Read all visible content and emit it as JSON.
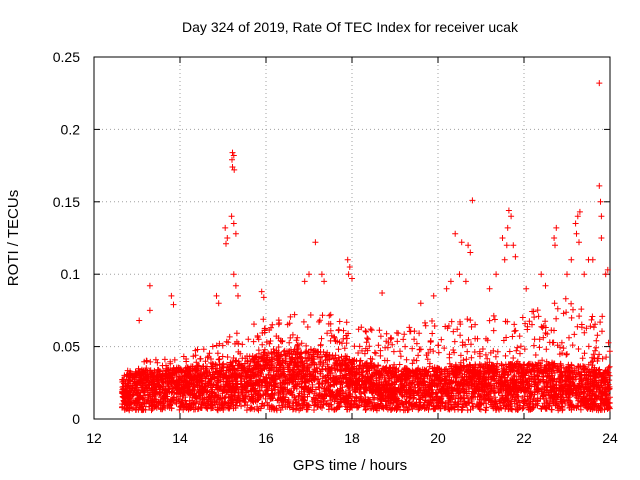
{
  "chart_data": {
    "type": "scatter",
    "title": "Day 324 of 2019, Rate Of TEC Index for receiver ucak",
    "xlabel": "GPS time / hours",
    "ylabel": "ROTI / TECUs",
    "xlim": [
      12,
      24
    ],
    "ylim": [
      0,
      0.25
    ],
    "x_ticks": [
      12,
      14,
      16,
      18,
      20,
      22,
      24
    ],
    "x_tick_labels": [
      "12",
      "14",
      "16",
      "18",
      "20",
      "22",
      "24"
    ],
    "y_ticks": [
      0,
      0.05,
      0.1,
      0.15,
      0.2,
      0.25
    ],
    "y_tick_labels": [
      "0",
      "0.05",
      "0.1",
      "0.15",
      "0.2",
      "0.25"
    ],
    "grid": true,
    "marker": "+",
    "series_color": "#ff0000",
    "data_start_hour": 12.65,
    "data_end_hour": 24.0,
    "baseline": {
      "hours": [
        12.65,
        13,
        14,
        15,
        16,
        17,
        18,
        19,
        20,
        21,
        22,
        23,
        24
      ],
      "typical_roti": [
        0.018,
        0.02,
        0.022,
        0.024,
        0.03,
        0.032,
        0.026,
        0.022,
        0.022,
        0.024,
        0.024,
        0.024,
        0.02
      ],
      "envelope_roti": [
        0.03,
        0.04,
        0.045,
        0.055,
        0.07,
        0.08,
        0.065,
        0.06,
        0.07,
        0.07,
        0.075,
        0.085,
        0.07
      ]
    },
    "highlighted_points": [
      {
        "x": 13.3,
        "y": 0.092
      },
      {
        "x": 13.3,
        "y": 0.075
      },
      {
        "x": 13.05,
        "y": 0.068
      },
      {
        "x": 13.8,
        "y": 0.085
      },
      {
        "x": 13.85,
        "y": 0.079
      },
      {
        "x": 14.85,
        "y": 0.085
      },
      {
        "x": 14.9,
        "y": 0.08
      },
      {
        "x": 15.05,
        "y": 0.132
      },
      {
        "x": 15.1,
        "y": 0.125
      },
      {
        "x": 15.07,
        "y": 0.121
      },
      {
        "x": 15.22,
        "y": 0.184
      },
      {
        "x": 15.25,
        "y": 0.182
      },
      {
        "x": 15.21,
        "y": 0.179
      },
      {
        "x": 15.22,
        "y": 0.174
      },
      {
        "x": 15.26,
        "y": 0.172
      },
      {
        "x": 15.2,
        "y": 0.14
      },
      {
        "x": 15.25,
        "y": 0.135
      },
      {
        "x": 15.3,
        "y": 0.128
      },
      {
        "x": 15.25,
        "y": 0.1
      },
      {
        "x": 15.3,
        "y": 0.092
      },
      {
        "x": 15.35,
        "y": 0.085
      },
      {
        "x": 15.9,
        "y": 0.088
      },
      {
        "x": 15.95,
        "y": 0.084
      },
      {
        "x": 16.9,
        "y": 0.095
      },
      {
        "x": 17.0,
        "y": 0.1
      },
      {
        "x": 17.15,
        "y": 0.122
      },
      {
        "x": 17.3,
        "y": 0.1
      },
      {
        "x": 17.35,
        "y": 0.095
      },
      {
        "x": 17.9,
        "y": 0.11
      },
      {
        "x": 17.95,
        "y": 0.105
      },
      {
        "x": 17.92,
        "y": 0.1
      },
      {
        "x": 18.0,
        "y": 0.097
      },
      {
        "x": 18.7,
        "y": 0.087
      },
      {
        "x": 19.6,
        "y": 0.08
      },
      {
        "x": 19.9,
        "y": 0.085
      },
      {
        "x": 20.2,
        "y": 0.09
      },
      {
        "x": 20.3,
        "y": 0.095
      },
      {
        "x": 20.4,
        "y": 0.128
      },
      {
        "x": 20.55,
        "y": 0.122
      },
      {
        "x": 20.7,
        "y": 0.12
      },
      {
        "x": 20.75,
        "y": 0.115
      },
      {
        "x": 20.8,
        "y": 0.151
      },
      {
        "x": 20.5,
        "y": 0.1
      },
      {
        "x": 20.65,
        "y": 0.095
      },
      {
        "x": 21.2,
        "y": 0.09
      },
      {
        "x": 21.35,
        "y": 0.1
      },
      {
        "x": 21.5,
        "y": 0.125
      },
      {
        "x": 21.6,
        "y": 0.12
      },
      {
        "x": 21.65,
        "y": 0.144
      },
      {
        "x": 21.7,
        "y": 0.14
      },
      {
        "x": 21.62,
        "y": 0.132
      },
      {
        "x": 21.55,
        "y": 0.11
      },
      {
        "x": 21.75,
        "y": 0.12
      },
      {
        "x": 21.8,
        "y": 0.112
      },
      {
        "x": 22.05,
        "y": 0.09
      },
      {
        "x": 22.4,
        "y": 0.1
      },
      {
        "x": 22.5,
        "y": 0.092
      },
      {
        "x": 22.7,
        "y": 0.125
      },
      {
        "x": 22.75,
        "y": 0.132
      },
      {
        "x": 22.72,
        "y": 0.12
      },
      {
        "x": 23.0,
        "y": 0.1
      },
      {
        "x": 23.1,
        "y": 0.11
      },
      {
        "x": 23.2,
        "y": 0.135
      },
      {
        "x": 23.25,
        "y": 0.14
      },
      {
        "x": 23.3,
        "y": 0.143
      },
      {
        "x": 23.22,
        "y": 0.128
      },
      {
        "x": 23.28,
        "y": 0.122
      },
      {
        "x": 23.4,
        "y": 0.1
      },
      {
        "x": 23.5,
        "y": 0.11
      },
      {
        "x": 23.75,
        "y": 0.232
      },
      {
        "x": 23.75,
        "y": 0.161
      },
      {
        "x": 23.78,
        "y": 0.15
      },
      {
        "x": 23.8,
        "y": 0.14
      },
      {
        "x": 23.8,
        "y": 0.125
      },
      {
        "x": 23.9,
        "y": 0.1
      },
      {
        "x": 23.95,
        "y": 0.103
      },
      {
        "x": 23.6,
        "y": 0.11
      }
    ]
  }
}
